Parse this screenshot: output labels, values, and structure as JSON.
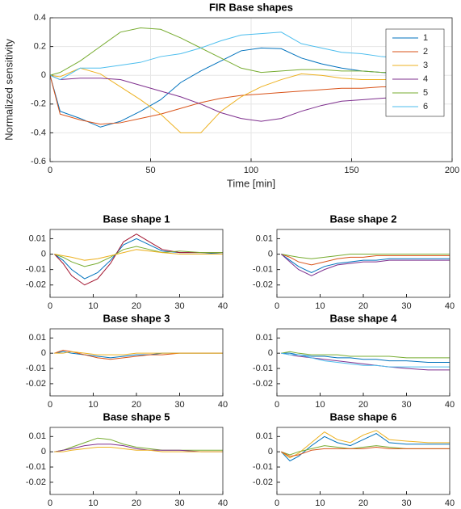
{
  "chart_data": [
    {
      "type": "line",
      "title": "FIR Base shapes",
      "xlabel": "Time [min]",
      "ylabel": "Normalized sensitivity",
      "x": [
        0,
        5,
        15,
        25,
        35,
        45,
        55,
        65,
        75,
        85,
        95,
        105,
        115,
        125,
        135,
        145,
        155,
        165,
        175,
        185,
        195
      ],
      "series": [
        {
          "name": "1",
          "color": "#0072bd",
          "values": [
            0,
            -0.25,
            -0.3,
            -0.36,
            -0.32,
            -0.25,
            -0.17,
            -0.05,
            0.03,
            0.1,
            0.17,
            0.19,
            0.185,
            0.12,
            0.08,
            0.05,
            0.03,
            0.02,
            0.01,
            0.01,
            0.01
          ]
        },
        {
          "name": "2",
          "color": "#d95319",
          "values": [
            0,
            -0.27,
            -0.31,
            -0.34,
            -0.33,
            -0.3,
            -0.27,
            -0.23,
            -0.19,
            -0.16,
            -0.14,
            -0.13,
            -0.12,
            -0.11,
            -0.1,
            -0.09,
            -0.09,
            -0.08,
            -0.08,
            -0.08,
            -0.08
          ]
        },
        {
          "name": "3",
          "color": "#edb120",
          "values": [
            0,
            -0.01,
            0.05,
            0.01,
            -0.08,
            -0.17,
            -0.27,
            -0.4,
            -0.4,
            -0.25,
            -0.15,
            -0.08,
            -0.03,
            0.01,
            0,
            -0.02,
            -0.03,
            -0.03,
            -0.03,
            -0.03,
            -0.03
          ]
        },
        {
          "name": "4",
          "color": "#7e2f8e",
          "values": [
            0,
            -0.03,
            -0.02,
            -0.02,
            -0.03,
            -0.07,
            -0.11,
            -0.15,
            -0.2,
            -0.26,
            -0.3,
            -0.32,
            -0.3,
            -0.25,
            -0.21,
            -0.18,
            -0.17,
            -0.16,
            -0.15,
            -0.15,
            -0.15
          ]
        },
        {
          "name": "5",
          "color": "#77ac30",
          "values": [
            0,
            0.02,
            0.1,
            0.2,
            0.3,
            0.33,
            0.32,
            0.26,
            0.19,
            0.12,
            0.05,
            0.02,
            0.03,
            0.04,
            0.04,
            0.03,
            0.03,
            0.02,
            0.02,
            0.02,
            0.02
          ]
        },
        {
          "name": "6",
          "color": "#4dbeee",
          "values": [
            0,
            -0.03,
            0.05,
            0.05,
            0.07,
            0.09,
            0.13,
            0.15,
            0.19,
            0.24,
            0.28,
            0.29,
            0.3,
            0.22,
            0.19,
            0.16,
            0.15,
            0.13,
            0.12,
            0.11,
            0.1
          ]
        }
      ],
      "xlim": [
        0,
        200
      ],
      "ylim": [
        -0.6,
        0.4
      ],
      "xticks": [
        0,
        50,
        100,
        150,
        200
      ],
      "yticks": [
        -0.6,
        -0.4,
        -0.2,
        0,
        0.2,
        0.4
      ],
      "grid": true,
      "legend": "upper right"
    },
    {
      "type": "line",
      "title": "Base shape 1",
      "x": [
        1,
        3,
        5,
        8,
        11,
        14,
        17,
        20,
        23,
        26,
        30,
        35,
        40
      ],
      "series": [
        {
          "color": "#0072bd",
          "values": [
            0,
            -0.004,
            -0.01,
            -0.016,
            -0.012,
            -0.004,
            0.006,
            0.01,
            0.006,
            0.002,
            0.001,
            0.001,
            0
          ]
        },
        {
          "color": "#a2142f",
          "values": [
            0,
            -0.006,
            -0.014,
            -0.02,
            -0.016,
            -0.006,
            0.008,
            0.013,
            0.008,
            0.003,
            0.001,
            0.001,
            0.001
          ]
        },
        {
          "color": "#77ac30",
          "values": [
            0,
            -0.002,
            -0.005,
            -0.008,
            -0.006,
            -0.002,
            0.003,
            0.005,
            0.003,
            0.001,
            0.002,
            0.001,
            0.001
          ]
        },
        {
          "color": "#edb120",
          "values": [
            0,
            -0.001,
            -0.002,
            -0.004,
            -0.003,
            -0.001,
            0.001,
            0.003,
            0.002,
            0.001,
            0,
            0,
            0
          ]
        }
      ],
      "xlim": [
        0,
        40
      ],
      "ylim": [
        -0.028,
        0.016
      ],
      "xticks": [
        0,
        10,
        20,
        30,
        40
      ],
      "yticks": [
        -0.02,
        -0.01,
        0,
        0.01
      ],
      "grid": false
    },
    {
      "type": "line",
      "title": "Base shape 2",
      "x": [
        1,
        3,
        5,
        8,
        11,
        14,
        17,
        20,
        23,
        26,
        30,
        35,
        40
      ],
      "series": [
        {
          "color": "#0072bd",
          "values": [
            0,
            -0.004,
            -0.008,
            -0.012,
            -0.008,
            -0.006,
            -0.005,
            -0.004,
            -0.004,
            -0.003,
            -0.003,
            -0.003,
            -0.003
          ]
        },
        {
          "color": "#d95319",
          "values": [
            0,
            -0.002,
            -0.005,
            -0.007,
            -0.005,
            -0.003,
            -0.002,
            -0.002,
            -0.001,
            -0.001,
            -0.001,
            -0.001,
            -0.001
          ]
        },
        {
          "color": "#77ac30",
          "values": [
            0,
            -0.001,
            -0.002,
            -0.003,
            -0.002,
            -0.001,
            0,
            0,
            0,
            0,
            0,
            0,
            0
          ]
        },
        {
          "color": "#7e2f8e",
          "values": [
            0,
            -0.005,
            -0.01,
            -0.014,
            -0.01,
            -0.007,
            -0.006,
            -0.005,
            -0.005,
            -0.004,
            -0.004,
            -0.004,
            -0.004
          ]
        }
      ],
      "xlim": [
        0,
        40
      ],
      "ylim": [
        -0.028,
        0.016
      ],
      "xticks": [
        0,
        10,
        20,
        30,
        40
      ],
      "yticks": [
        -0.02,
        -0.01,
        0,
        0.01
      ],
      "grid": false
    },
    {
      "type": "line",
      "title": "Base shape 3",
      "x": [
        1,
        3,
        5,
        8,
        11,
        14,
        17,
        20,
        23,
        26,
        30,
        35,
        40
      ],
      "series": [
        {
          "color": "#0072bd",
          "values": [
            0,
            0.001,
            0,
            -0.001,
            -0.002,
            -0.003,
            -0.002,
            -0.001,
            -0.001,
            0,
            0,
            0,
            0
          ]
        },
        {
          "color": "#d95319",
          "values": [
            0,
            0.002,
            0.001,
            -0.001,
            -0.003,
            -0.004,
            -0.003,
            -0.002,
            -0.001,
            -0.001,
            0,
            0,
            0
          ]
        },
        {
          "color": "#edb120",
          "values": [
            0,
            0,
            0.001,
            0,
            -0.001,
            -0.001,
            -0.001,
            0,
            0,
            0,
            0,
            0,
            0
          ]
        }
      ],
      "xlim": [
        0,
        40
      ],
      "ylim": [
        -0.028,
        0.016
      ],
      "xticks": [
        0,
        10,
        20,
        30,
        40
      ],
      "yticks": [
        -0.02,
        -0.01,
        0,
        0.01
      ],
      "grid": false
    },
    {
      "type": "line",
      "title": "Base shape 4",
      "x": [
        1,
        3,
        5,
        8,
        11,
        14,
        17,
        20,
        23,
        26,
        30,
        35,
        40
      ],
      "series": [
        {
          "color": "#7e2f8e",
          "values": [
            0,
            -0.001,
            -0.002,
            -0.003,
            -0.004,
            -0.005,
            -0.006,
            -0.007,
            -0.008,
            -0.009,
            -0.01,
            -0.011,
            -0.011
          ]
        },
        {
          "color": "#0072bd",
          "values": [
            0,
            0,
            -0.001,
            -0.002,
            -0.002,
            -0.003,
            -0.003,
            -0.004,
            -0.004,
            -0.005,
            -0.005,
            -0.006,
            -0.006
          ]
        },
        {
          "color": "#77ac30",
          "values": [
            0,
            0.001,
            0,
            -0.001,
            -0.001,
            -0.001,
            -0.002,
            -0.002,
            -0.002,
            -0.002,
            -0.003,
            -0.003,
            -0.003
          ]
        },
        {
          "color": "#4dbeee",
          "values": [
            0,
            -0.001,
            -0.001,
            -0.003,
            -0.005,
            -0.006,
            -0.007,
            -0.008,
            -0.008,
            -0.009,
            -0.009,
            -0.009,
            -0.009
          ]
        }
      ],
      "xlim": [
        0,
        40
      ],
      "ylim": [
        -0.028,
        0.016
      ],
      "xticks": [
        0,
        10,
        20,
        30,
        40
      ],
      "yticks": [
        -0.02,
        -0.01,
        0,
        0.01
      ],
      "grid": false
    },
    {
      "type": "line",
      "title": "Base shape 5",
      "x": [
        1,
        3,
        5,
        8,
        11,
        14,
        17,
        20,
        23,
        26,
        30,
        35,
        40
      ],
      "series": [
        {
          "color": "#77ac30",
          "values": [
            0,
            0.001,
            0.003,
            0.006,
            0.009,
            0.008,
            0.005,
            0.003,
            0.002,
            0.001,
            0.001,
            0.001,
            0.001
          ]
        },
        {
          "color": "#7e2f8e",
          "values": [
            0,
            0.001,
            0.002,
            0.004,
            0.005,
            0.005,
            0.004,
            0.002,
            0.001,
            0.001,
            0.001,
            0,
            0
          ]
        },
        {
          "color": "#edb120",
          "values": [
            0,
            0,
            0.001,
            0.002,
            0.003,
            0.003,
            0.002,
            0.001,
            0.001,
            0,
            0,
            0,
            0
          ]
        }
      ],
      "xlim": [
        0,
        40
      ],
      "ylim": [
        -0.028,
        0.016
      ],
      "xticks": [
        0,
        10,
        20,
        30,
        40
      ],
      "yticks": [
        -0.02,
        -0.01,
        0,
        0.01
      ],
      "grid": false
    },
    {
      "type": "line",
      "title": "Base shape 6",
      "x": [
        1,
        3,
        5,
        8,
        11,
        14,
        17,
        20,
        23,
        26,
        30,
        35,
        40
      ],
      "series": [
        {
          "color": "#0072bd",
          "values": [
            0,
            -0.006,
            -0.003,
            0.004,
            0.01,
            0.006,
            0.004,
            0.008,
            0.012,
            0.006,
            0.005,
            0.005,
            0.005
          ]
        },
        {
          "color": "#edb120",
          "values": [
            0,
            -0.004,
            -0.001,
            0.006,
            0.013,
            0.008,
            0.006,
            0.011,
            0.014,
            0.008,
            0.007,
            0.006,
            0.006
          ]
        },
        {
          "color": "#77ac30",
          "values": [
            0,
            -0.002,
            0,
            0.002,
            0.004,
            0.003,
            0.002,
            0.003,
            0.004,
            0.003,
            0.002,
            0.002,
            0.002
          ]
        },
        {
          "color": "#d95319",
          "values": [
            0,
            -0.003,
            -0.002,
            0.001,
            0.002,
            0.002,
            0.002,
            0.002,
            0.003,
            0.002,
            0.002,
            0.002,
            0.002
          ]
        }
      ],
      "xlim": [
        0,
        40
      ],
      "ylim": [
        -0.028,
        0.016
      ],
      "xticks": [
        0,
        10,
        20,
        30,
        40
      ],
      "yticks": [
        -0.02,
        -0.01,
        0,
        0.01
      ],
      "grid": false
    }
  ]
}
